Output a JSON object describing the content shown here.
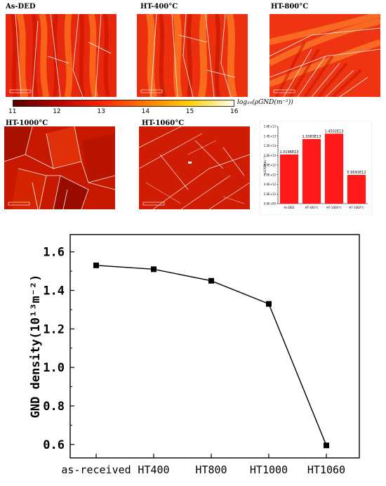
{
  "maps": [
    {
      "label": "As-DED"
    },
    {
      "label": "HT-400°C"
    },
    {
      "label": "HT-800°C"
    },
    {
      "label": "HT-1000°C"
    },
    {
      "label": "HT-1060°C"
    }
  ],
  "colorbar": {
    "ticks": [
      "11",
      "12",
      "13",
      "14",
      "15",
      "16"
    ],
    "title": "log₁₀(ρGND(m⁻²))",
    "colors": [
      "#5a0000",
      "#b80000",
      "#ff2200",
      "#ff7a00",
      "#ffd000",
      "#fffff0"
    ]
  },
  "chart_data": [
    {
      "type": "bar",
      "categories": [
        "As-DED",
        "HT-400℃",
        "HT-1000℃",
        "HT-1060℃"
      ],
      "values": [
        10196000000000.0,
        13383000000000.0,
        14502000000000.0,
        5959100000000.0
      ],
      "data_labels": [
        "1.0196E13",
        "1.3383E13",
        "1.4502E13",
        "5.9591E12"
      ],
      "ylabel": "ρGND(m⁻²)",
      "ylim": [
        0,
        16000000000000.0
      ],
      "ytick_labels": [
        "0.0E+00",
        "2.0E+12",
        "4.0E+12",
        "6.0E+12",
        "8.0E+12",
        "1.0E+13",
        "1.2E+13",
        "1.4E+13",
        "1.6E+13"
      ],
      "bar_color": "#ff1a1a"
    },
    {
      "type": "line",
      "categories": [
        "as-received",
        "HT400",
        "HT800",
        "HT1000",
        "HT1060"
      ],
      "values": [
        1.53,
        1.51,
        1.45,
        1.33,
        0.595
      ],
      "ylabel": "GND density(10¹³m⁻²)",
      "ylim": [
        0.53,
        1.69
      ],
      "yticks": [
        0.6,
        0.8,
        1.0,
        1.2,
        1.4,
        1.6
      ],
      "ytick_labels": [
        "0.6",
        "0.8",
        "1.0",
        "1.2",
        "1.4",
        "1.6"
      ],
      "marker": "square",
      "color": "#000000"
    }
  ]
}
